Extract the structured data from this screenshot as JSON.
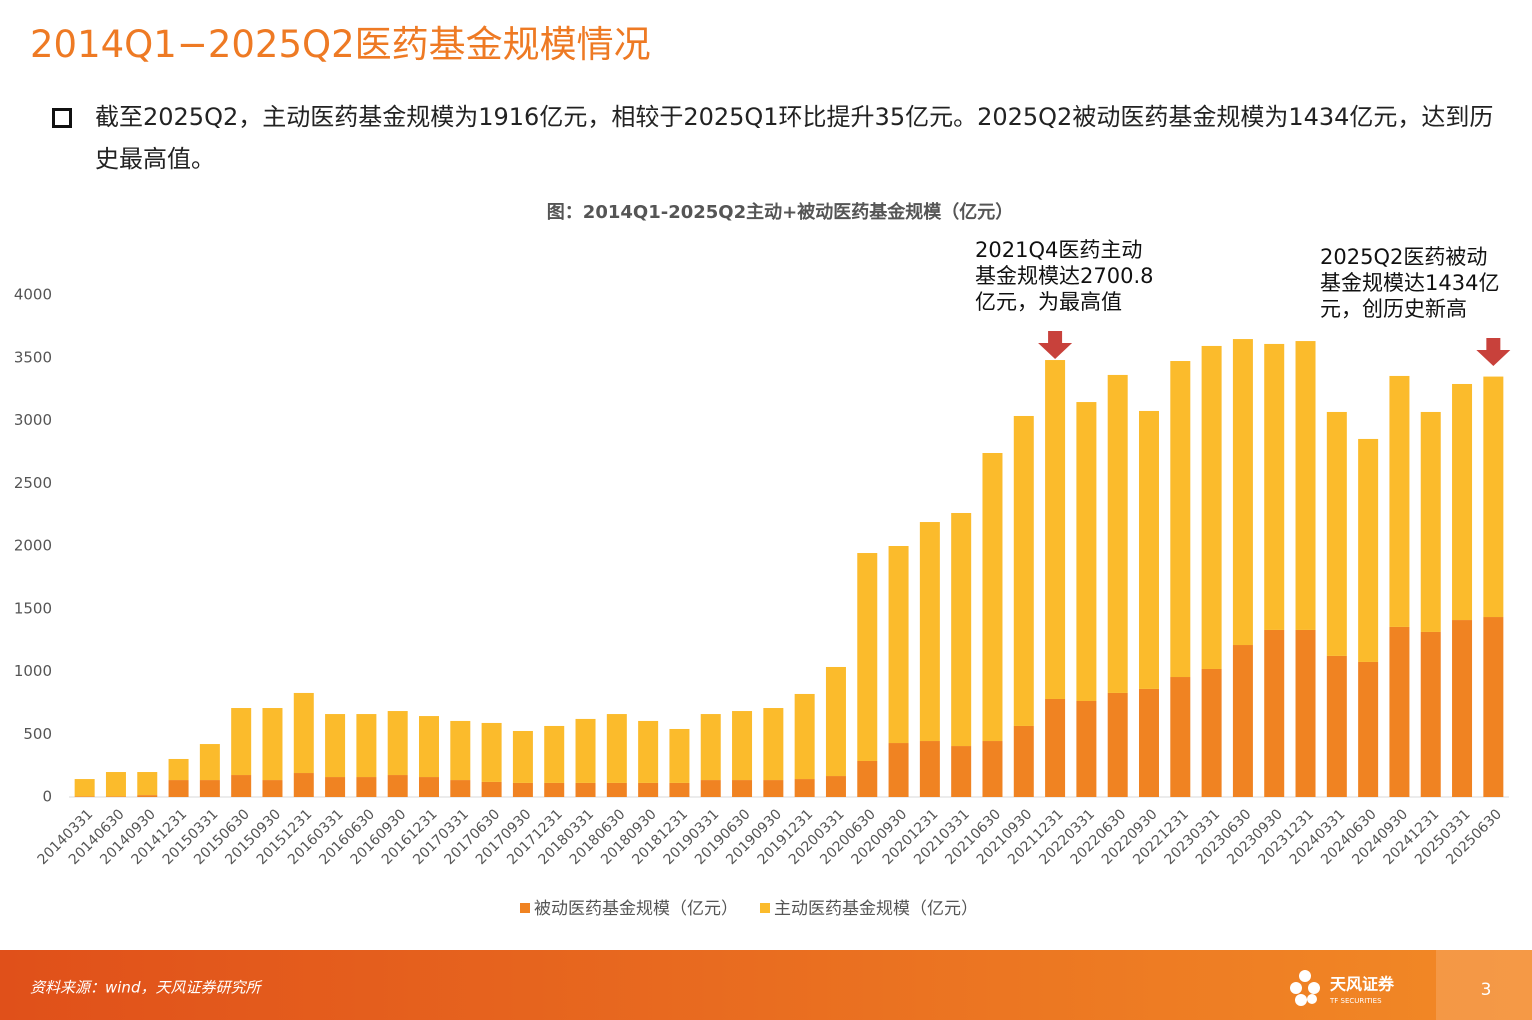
{
  "header": {
    "title": "2014Q1−2025Q2医药基金规模情况"
  },
  "bullet": {
    "text": "截至2025Q2，主动医药基金规模为1916亿元，相较于2025Q1环比提升35亿元。2025Q2被动医药基金规模为1434亿元，达到历史最高值。"
  },
  "chart_data": {
    "type": "stacked_bar",
    "title": "图：2014Q1-2025Q2主动+被动医药基金规模（亿元）",
    "categories": [
      "20140331",
      "20140630",
      "20140930",
      "20141231",
      "20150331",
      "20150630",
      "20150930",
      "20151231",
      "20160331",
      "20160630",
      "20160930",
      "20161231",
      "20170331",
      "20170630",
      "20170930",
      "20171231",
      "20180331",
      "20180630",
      "20180930",
      "20181231",
      "20190331",
      "20190630",
      "20190930",
      "20191231",
      "20200331",
      "20200630",
      "20200930",
      "20201231",
      "20210331",
      "20210630",
      "20210930",
      "20211231",
      "20220331",
      "20220630",
      "20220930",
      "20221231",
      "20230331",
      "20230630",
      "20230930",
      "20231231",
      "20240331",
      "20240630",
      "20240930",
      "20241231",
      "20250331",
      "20250630"
    ],
    "series": [
      {
        "name": "被动医药基金规模（亿元）",
        "color": "#f08322",
        "values": [
          5,
          5,
          15,
          135,
          135,
          175,
          135,
          191,
          159,
          159,
          175,
          159,
          135,
          120,
          112,
          112,
          112,
          112,
          112,
          112,
          135,
          135,
          135,
          143,
          167,
          287,
          430,
          446,
          406,
          446,
          566,
          781,
          765,
          829,
          861,
          956,
          1020,
          1211,
          1331,
          1331,
          1124,
          1076,
          1355,
          1315,
          1410,
          1434
        ]
      },
      {
        "name": "主动医药基金规模（亿元）",
        "color": "#fbbb2c",
        "values": [
          138,
          194,
          184,
          168,
          287,
          534,
          574,
          638,
          502,
          502,
          510,
          486,
          471,
          470,
          414,
          454,
          510,
          549,
          494,
          430,
          526,
          550,
          574,
          678,
          869,
          1657,
          1570,
          1745,
          1857,
          2295,
          2470,
          2700.8,
          2382,
          2534,
          2215,
          2518,
          2574,
          2438,
          2279,
          2302,
          1944,
          1777,
          2000,
          1753,
          1881,
          1916
        ]
      }
    ],
    "ylim": [
      0,
      4000
    ],
    "yticks": [
      0,
      500,
      1000,
      1500,
      2000,
      2500,
      3000,
      3500,
      4000
    ],
    "grid": false,
    "legend": "bottom",
    "annotations": [
      {
        "lines": [
          "2021Q4医药主动",
          "基金规模达2700.8",
          "亿元，为最高值"
        ]
      },
      {
        "lines": [
          "2025Q2医药被动",
          "基金规模达1434亿",
          "元，创历史新高"
        ]
      }
    ]
  },
  "footer": {
    "source": "资料来源：wind，天风证券研究所",
    "logo": "天风证券",
    "logo_en": "TF SECURITIES",
    "page": "3"
  }
}
